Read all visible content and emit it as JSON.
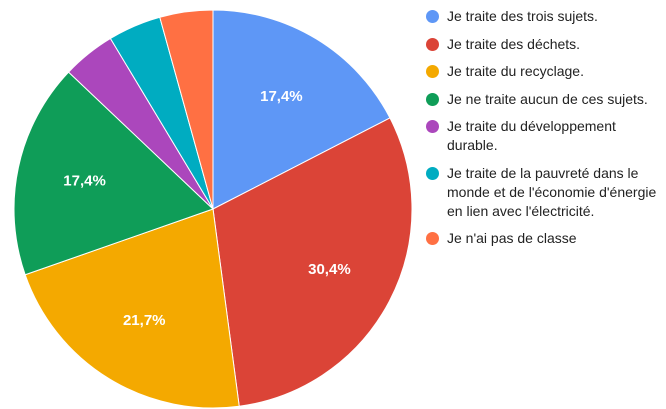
{
  "chart_data": {
    "type": "pie",
    "categories": [
      "Je traite des trois sujets.",
      "Je traite des déchets.",
      "Je traite du recyclage.",
      "Je ne traite aucun de ces sujets.",
      "Je traite du développement durable.",
      "Je traite de la pauvreté dans le monde et de l'économie d'énergie en lien avec l'électricité.",
      "Je n'ai pas de classe"
    ],
    "values": [
      17.4,
      30.4,
      21.7,
      17.4,
      4.3,
      4.3,
      4.3
    ],
    "value_labels": [
      "17,4%",
      "30,4%",
      "21,7%",
      "17,4%",
      null,
      null,
      null
    ],
    "colors": [
      "#5e97f6",
      "#db4437",
      "#f4a900",
      "#0f9d58",
      "#ab47bc",
      "#00acc1",
      "#ff7043"
    ],
    "legend": "right"
  }
}
